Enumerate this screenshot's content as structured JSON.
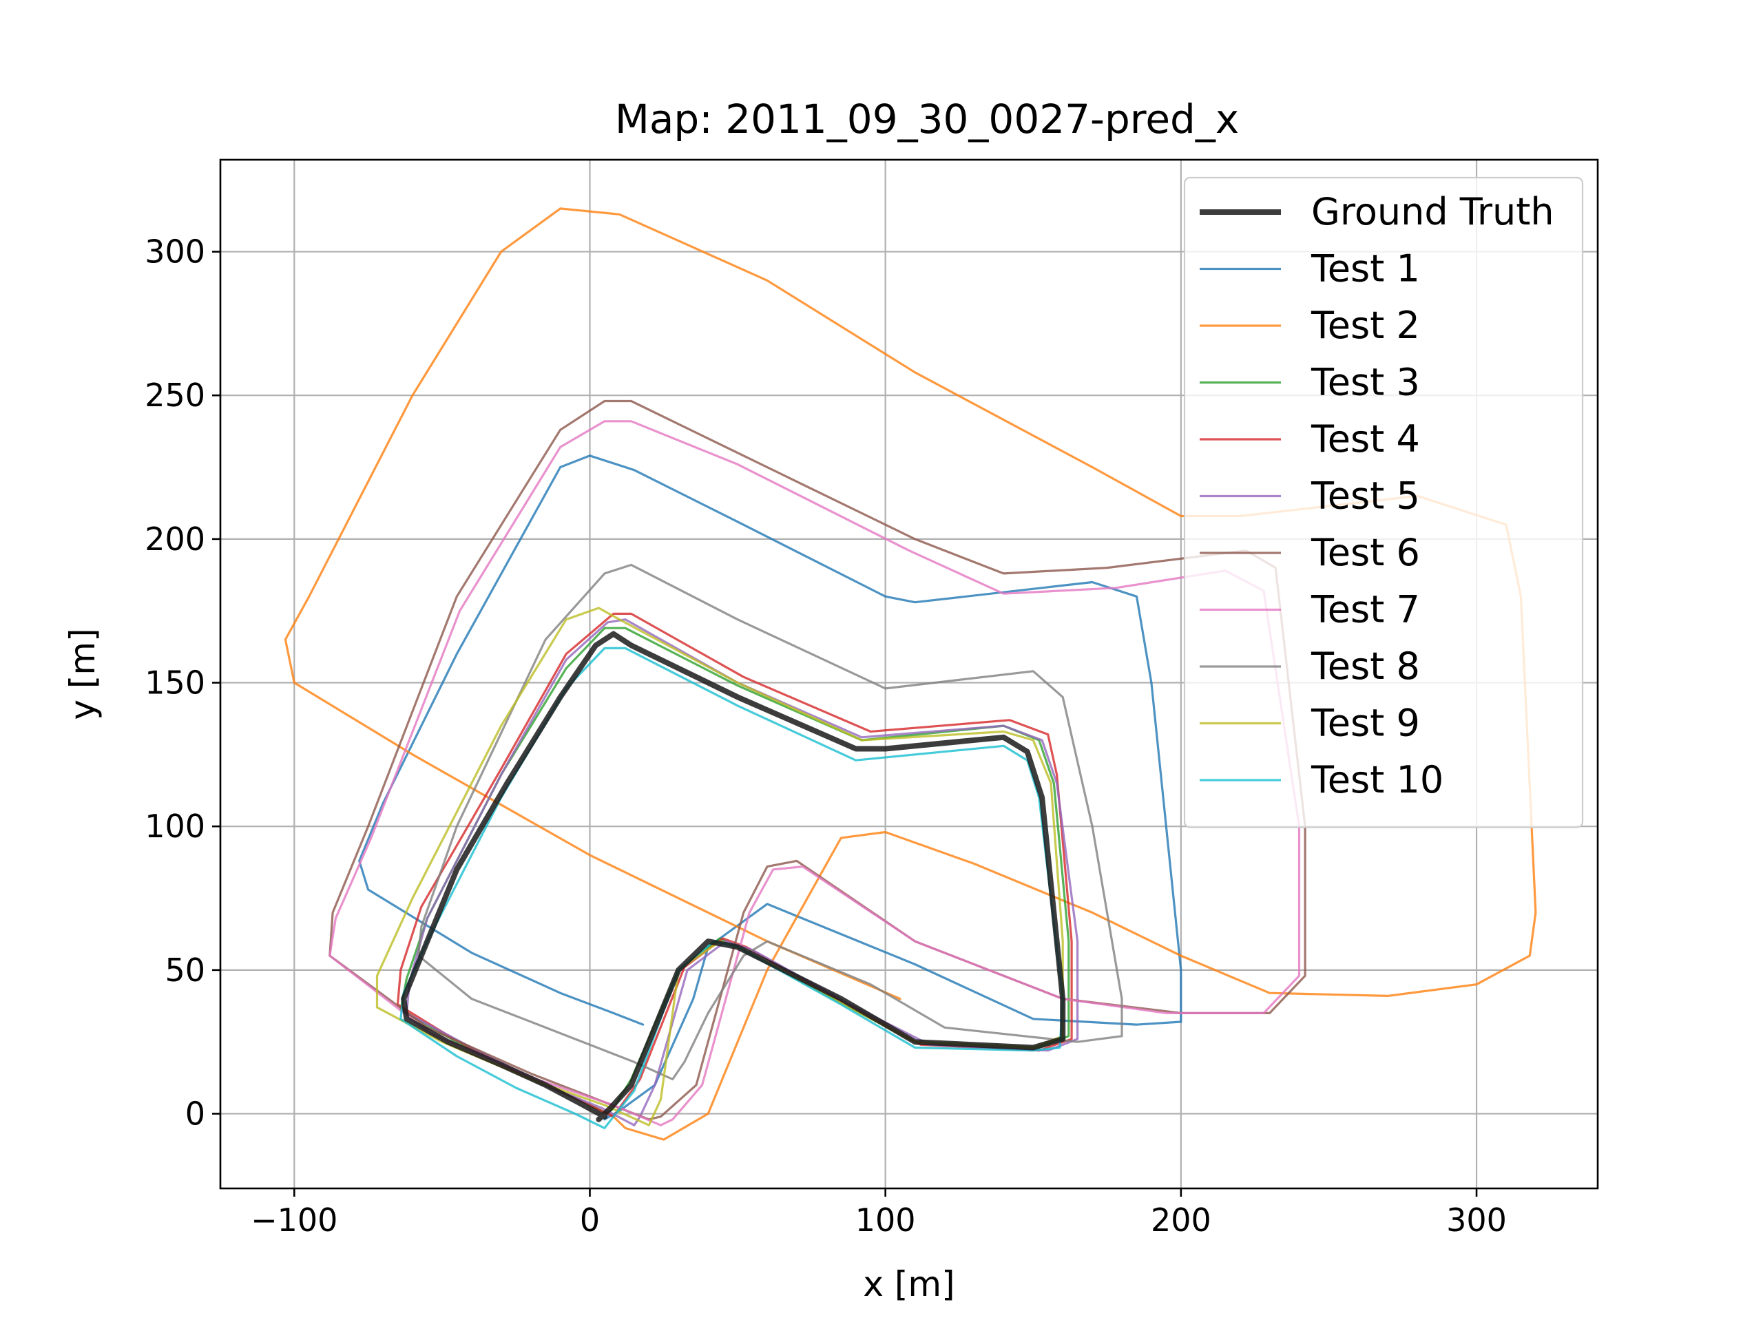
{
  "chart_data": {
    "type": "line",
    "title": "Map: 2011_09_30_0027-pred_x",
    "xlabel": "x [m]",
    "ylabel": "y [m]",
    "xlim": [
      -125,
      341
    ],
    "ylim": [
      -26,
      332
    ],
    "xticks": [
      -100,
      0,
      100,
      200,
      300
    ],
    "yticks": [
      0,
      50,
      100,
      150,
      200,
      250,
      300
    ],
    "xtick_labels": [
      "−100",
      "0",
      "100",
      "200",
      "300"
    ],
    "ytick_labels": [
      "0",
      "50",
      "100",
      "150",
      "200",
      "250",
      "300"
    ],
    "grid": true,
    "legend_position": "upper right",
    "series": [
      {
        "name": "Ground Truth",
        "color": "#1a1a1a",
        "x": [
          5,
          -4,
          -15,
          -30,
          -48,
          -62,
          -63,
          -57,
          -45,
          -28,
          -10,
          2,
          8,
          14,
          50,
          90,
          100,
          140,
          148,
          153,
          160,
          160,
          150,
          110,
          85,
          50,
          40,
          30,
          14,
          7,
          3,
          5
        ],
        "y": [
          -1,
          4,
          10,
          17,
          25,
          33,
          40,
          55,
          85,
          115,
          145,
          163,
          167,
          163,
          145,
          127,
          127,
          131,
          126,
          110,
          40,
          26,
          23,
          25,
          40,
          58,
          60,
          50,
          10,
          2,
          -2,
          0
        ]
      },
      {
        "name": "Test 1",
        "color": "#1f77b4",
        "x": [
          18,
          8,
          -10,
          -40,
          -75,
          -78,
          -70,
          -45,
          -10,
          0,
          15,
          50,
          100,
          110,
          170,
          185,
          190,
          200,
          200,
          185,
          150,
          110,
          60,
          40,
          35,
          22,
          10,
          5,
          7
        ],
        "y": [
          31,
          35,
          42,
          56,
          78,
          88,
          108,
          160,
          225,
          229,
          224,
          206,
          180,
          178,
          185,
          180,
          150,
          50,
          32,
          31,
          33,
          52,
          73,
          58,
          40,
          10,
          1,
          -2,
          0
        ]
      },
      {
        "name": "Test 2",
        "color": "#ff7f0e",
        "x": [
          105,
          60,
          0,
          -60,
          -100,
          -103,
          -95,
          -60,
          -30,
          -10,
          10,
          60,
          110,
          170,
          200,
          220,
          280,
          310,
          315,
          320,
          318,
          300,
          270,
          230,
          200,
          170,
          130,
          100,
          85,
          60,
          40,
          25,
          12,
          7
        ],
        "y": [
          40,
          60,
          90,
          125,
          150,
          165,
          180,
          250,
          300,
          315,
          313,
          290,
          258,
          225,
          208,
          208,
          215,
          205,
          180,
          70,
          55,
          45,
          41,
          42,
          55,
          70,
          87,
          98,
          96,
          50,
          0,
          -9,
          -5,
          0
        ]
      },
      {
        "name": "Test 3",
        "color": "#2ca02c",
        "x": [
          6,
          -4,
          -20,
          -45,
          -64,
          -62,
          -55,
          -30,
          -8,
          5,
          12,
          50,
          92,
          140,
          152,
          157,
          162,
          162,
          152,
          110,
          86,
          52,
          44,
          30,
          14,
          8,
          6
        ],
        "y": [
          0,
          5,
          12,
          25,
          36,
          47,
          68,
          118,
          155,
          169,
          169,
          149,
          130,
          135,
          130,
          115,
          60,
          27,
          23,
          25,
          38,
          57,
          61,
          50,
          12,
          2,
          0
        ]
      },
      {
        "name": "Test 4",
        "color": "#d62728",
        "x": [
          8,
          -4,
          -22,
          -46,
          -65,
          -64,
          -57,
          -30,
          -8,
          8,
          14,
          52,
          95,
          142,
          155,
          158,
          163,
          163,
          152,
          112,
          87,
          53,
          45,
          32,
          17,
          10,
          8
        ],
        "y": [
          -1,
          5,
          13,
          26,
          38,
          50,
          72,
          120,
          160,
          174,
          174,
          152,
          133,
          137,
          132,
          118,
          60,
          26,
          22,
          24,
          38,
          58,
          61,
          51,
          12,
          2,
          -1
        ]
      },
      {
        "name": "Test 5",
        "color": "#9467bd",
        "x": [
          15,
          4,
          -15,
          -40,
          -62,
          -61,
          -55,
          -30,
          -8,
          6,
          12,
          50,
          92,
          140,
          153,
          158,
          165,
          165,
          155,
          115,
          88,
          55,
          46,
          33,
          22,
          17,
          15
        ],
        "y": [
          -4,
          2,
          10,
          23,
          35,
          46,
          68,
          118,
          158,
          171,
          172,
          150,
          131,
          135,
          130,
          115,
          60,
          26,
          22,
          24,
          38,
          57,
          60,
          50,
          10,
          -1,
          -4
        ]
      },
      {
        "name": "Test 6",
        "color": "#8c564b",
        "x": [
          20,
          5,
          -20,
          -55,
          -88,
          -87,
          -75,
          -45,
          -10,
          5,
          14,
          50,
          110,
          140,
          175,
          222,
          232,
          242,
          242,
          230,
          200,
          160,
          110,
          70,
          60,
          52,
          36,
          24,
          20
        ],
        "y": [
          -2,
          4,
          14,
          30,
          55,
          70,
          100,
          180,
          238,
          248,
          248,
          230,
          200,
          188,
          190,
          196,
          190,
          100,
          48,
          35,
          35,
          40,
          60,
          88,
          86,
          70,
          10,
          -1,
          -2
        ]
      },
      {
        "name": "Test 7",
        "color": "#e377c2",
        "x": [
          24,
          8,
          -18,
          -54,
          -88,
          -86,
          -74,
          -44,
          -10,
          5,
          14,
          50,
          108,
          140,
          178,
          215,
          228,
          240,
          240,
          228,
          195,
          160,
          110,
          72,
          62,
          54,
          38,
          28,
          24
        ],
        "y": [
          -4,
          3,
          12,
          28,
          55,
          68,
          96,
          175,
          232,
          241,
          241,
          226,
          196,
          181,
          183,
          189,
          182,
          100,
          48,
          35,
          35,
          40,
          60,
          86,
          85,
          70,
          10,
          -2,
          -4
        ]
      },
      {
        "name": "Test 8",
        "color": "#7f7f7f",
        "x": [
          28,
          15,
          -10,
          -40,
          -58,
          -57,
          -45,
          -15,
          5,
          14,
          50,
          100,
          150,
          160,
          170,
          180,
          180,
          165,
          120,
          95,
          60,
          52,
          40,
          32,
          28
        ],
        "y": [
          12,
          18,
          28,
          40,
          55,
          65,
          100,
          165,
          188,
          191,
          172,
          148,
          154,
          145,
          100,
          40,
          27,
          25,
          30,
          45,
          60,
          55,
          35,
          18,
          12
        ]
      },
      {
        "name": "Test 9",
        "color": "#bcbd22",
        "x": [
          20,
          5,
          -20,
          -50,
          -72,
          -72,
          -60,
          -30,
          -8,
          3,
          10,
          50,
          92,
          140,
          150,
          156,
          160,
          160,
          150,
          110,
          86,
          52,
          44,
          30,
          24,
          20
        ],
        "y": [
          -4,
          3,
          12,
          25,
          37,
          48,
          75,
          135,
          172,
          176,
          172,
          150,
          130,
          133,
          130,
          115,
          60,
          27,
          23,
          25,
          38,
          57,
          60,
          50,
          5,
          -4
        ]
      },
      {
        "name": "Test 10",
        "color": "#17becf",
        "x": [
          5,
          -5,
          -25,
          -45,
          -64,
          -63,
          -55,
          -30,
          -8,
          5,
          12,
          50,
          90,
          140,
          148,
          152,
          160,
          159,
          150,
          110,
          85,
          50,
          42,
          30,
          15,
          8,
          5
        ],
        "y": [
          -5,
          0,
          9,
          20,
          33,
          42,
          60,
          110,
          148,
          162,
          162,
          142,
          123,
          128,
          123,
          110,
          40,
          23,
          22,
          23,
          38,
          58,
          60,
          50,
          8,
          -1,
          -5
        ]
      }
    ]
  }
}
